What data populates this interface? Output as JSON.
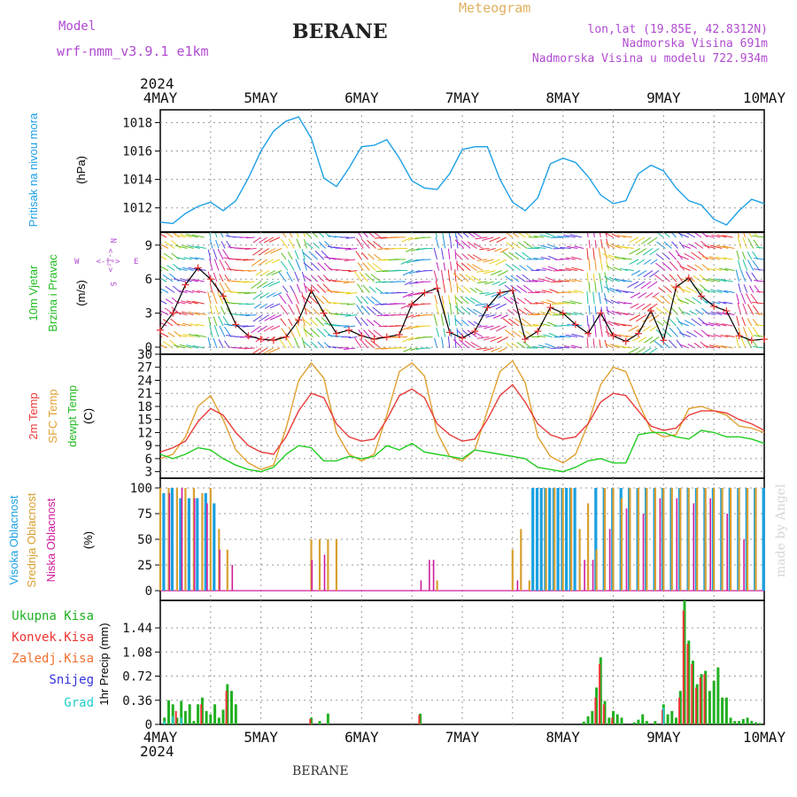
{
  "header": {
    "model_label": "Model",
    "model_name": "wrf-nmm_v3.9.1 e1km",
    "station": "BERANE",
    "product": "Meteogram",
    "coords": "lon,lat (19.85E, 42.8312N)",
    "elevation": "Nadmorska Visina 691m",
    "model_elevation": "Nadmorska Visina u modelu 722.934m",
    "year": "2024",
    "footer_station": "BERANE",
    "credit": "made by Angel"
  },
  "colors": {
    "pressure": "#1ea0e6",
    "t2m": "#e83a3a",
    "sfc": "#e0a030",
    "dew": "#22cc22",
    "wind_title": "#22bb22",
    "cloud_high": "#1aa0e0",
    "cloud_mid": "#d8a030",
    "cloud_low": "#d01c9c",
    "precip_total": "#22b022",
    "precip_conv": "#ee3333",
    "precip_frozen": "#f07030",
    "precip_snow": "#3333dd",
    "precip_grad": "#22cccc",
    "purple_text": "#b04ad0",
    "gold_text": "#e0b060"
  },
  "axis": {
    "day_labels": [
      "4MAY",
      "5MAY",
      "6MAY",
      "7MAY",
      "8MAY",
      "9MAY",
      "10MAY"
    ]
  },
  "panels": {
    "pressure": {
      "ylabel": "Pritisak na nivou mora",
      "unit": "(hPa)"
    },
    "wind": {
      "ylabel1": "10m Vjetar",
      "ylabel2": "Brzina i Pravac",
      "unit": "(m/s)",
      "compass_n": "N",
      "compass_s": "S",
      "compass_w": "W",
      "compass_e": "E",
      "compass_arrow_v": "<-|->",
      "compass_arrow_h": "<-|->"
    },
    "temp": {
      "label1": "2m Temp",
      "label2": "SFC Temp",
      "label3": "dewpt Temp",
      "unit": "(C)"
    },
    "cloud": {
      "label1": "Visoka Oblacnost",
      "label2": "Srednja Oblacnost",
      "label3": "Niska Oblacnost",
      "unit": "(%)"
    },
    "precip": {
      "unit": "1hr Precip (mm)",
      "legend": [
        "Ukupna Kisa",
        "Konvek.Kisa",
        "Zaledj.Kisa",
        "Snijeg",
        "Grad"
      ]
    }
  },
  "chart_data": [
    {
      "type": "line",
      "title": "Pritisak na nivou mora",
      "ylabel": "(hPa)",
      "ylim": [
        1010.3,
        1018.9
      ],
      "yticks": [
        1012,
        1014,
        1016,
        1018
      ],
      "x_unit": "hours since 4MAY 00UTC",
      "series": [
        {
          "x": [
            0,
            3,
            6,
            9,
            12,
            15,
            18,
            21,
            24,
            27,
            30,
            33,
            36,
            39,
            42,
            45,
            48,
            51,
            54,
            57,
            60,
            63,
            66,
            69,
            72,
            75,
            78,
            81,
            84,
            87,
            90,
            93,
            96,
            99,
            102,
            105,
            108,
            111,
            114,
            117,
            120,
            123,
            126,
            129,
            132,
            135,
            138,
            141,
            144
          ],
          "values": [
            1011.0,
            1010.9,
            1011.6,
            1012.1,
            1012.4,
            1011.8,
            1012.5,
            1014.1,
            1016.0,
            1017.4,
            1018.1,
            1018.4,
            1016.9,
            1014.1,
            1013.5,
            1014.8,
            1016.3,
            1016.4,
            1016.8,
            1015.5,
            1013.9,
            1013.4,
            1013.3,
            1014.4,
            1016.1,
            1016.3,
            1016.3,
            1014.0,
            1012.4,
            1011.8,
            1012.7,
            1015.1,
            1015.5,
            1015.2,
            1014.2,
            1012.9,
            1012.3,
            1012.5,
            1014.4,
            1015.0,
            1014.6,
            1013.4,
            1012.5,
            1012.2,
            1011.2,
            1010.8,
            1011.8,
            1012.6,
            1012.3
          ]
        }
      ]
    },
    {
      "type": "line",
      "title": "10m Vjetar Brzina i Pravac",
      "ylabel": "(m/s)",
      "ylim": [
        0,
        10
      ],
      "yticks": [
        0,
        3,
        6,
        9
      ],
      "series": [
        {
          "name": "speed",
          "x": [
            0,
            3,
            6,
            9,
            12,
            15,
            18,
            21,
            24,
            27,
            30,
            33,
            36,
            39,
            42,
            45,
            48,
            51,
            54,
            57,
            60,
            63,
            66,
            69,
            72,
            75,
            78,
            81,
            84,
            87,
            90,
            93,
            96,
            99,
            102,
            105,
            108,
            111,
            114,
            117,
            120,
            123,
            126,
            129,
            132,
            135,
            138,
            141,
            144
          ],
          "values": [
            1.5,
            3.0,
            5.5,
            7.0,
            6.0,
            4.5,
            2.0,
            1.0,
            0.7,
            0.6,
            0.9,
            2.4,
            5.0,
            3.0,
            1.2,
            1.5,
            1.0,
            0.7,
            0.9,
            1.1,
            3.8,
            4.8,
            5.2,
            1.3,
            0.8,
            1.4,
            3.5,
            4.8,
            5.0,
            0.7,
            1.4,
            3.5,
            3.0,
            2.0,
            1.2,
            3.0,
            1.0,
            0.5,
            1.2,
            3.2,
            0.6,
            5.3,
            6.1,
            4.5,
            3.6,
            3.2,
            1.0,
            0.6,
            0.7
          ]
        }
      ]
    },
    {
      "type": "line",
      "title": "2m Temp / SFC Temp / dewpt Temp",
      "ylabel": "(C)",
      "ylim": [
        1.5,
        30
      ],
      "yticks": [
        3,
        6,
        9,
        12,
        15,
        18,
        21,
        24,
        27,
        30
      ],
      "series": [
        {
          "name": "2m Temp",
          "x": [
            0,
            3,
            6,
            9,
            12,
            15,
            18,
            21,
            24,
            27,
            30,
            33,
            36,
            39,
            42,
            45,
            48,
            51,
            54,
            57,
            60,
            63,
            66,
            69,
            72,
            75,
            78,
            81,
            84,
            87,
            90,
            93,
            96,
            99,
            102,
            105,
            108,
            111,
            114,
            117,
            120,
            123,
            126,
            129,
            132,
            135,
            138,
            141,
            144
          ],
          "values": [
            7.5,
            8.5,
            10.0,
            14.5,
            17.5,
            16.0,
            12.0,
            9.0,
            7.5,
            7.0,
            11.0,
            17.0,
            21.0,
            20.0,
            14.0,
            11.0,
            10.0,
            10.5,
            15.0,
            20.5,
            22.0,
            20.0,
            14.0,
            11.5,
            10.0,
            10.5,
            15.0,
            20.5,
            23.0,
            19.0,
            14.0,
            11.5,
            10.5,
            11.0,
            14.0,
            19.0,
            21.0,
            20.5,
            17.0,
            13.5,
            12.5,
            13.0,
            16.0,
            17.0,
            17.0,
            16.5,
            15.0,
            14.0,
            12.5
          ]
        },
        {
          "name": "SFC Temp",
          "x": [
            0,
            3,
            6,
            9,
            12,
            15,
            18,
            21,
            24,
            27,
            30,
            33,
            36,
            39,
            42,
            45,
            48,
            51,
            54,
            57,
            60,
            63,
            66,
            69,
            72,
            75,
            78,
            81,
            84,
            87,
            90,
            93,
            96,
            99,
            102,
            105,
            108,
            111,
            114,
            117,
            120,
            123,
            126,
            129,
            132,
            135,
            138,
            141,
            144
          ],
          "values": [
            6.0,
            7.0,
            11.0,
            18.0,
            20.5,
            15.0,
            8.0,
            5.0,
            3.5,
            4.5,
            13.0,
            24.0,
            28.0,
            24.5,
            12.0,
            7.0,
            5.5,
            7.0,
            16.0,
            26.0,
            28.0,
            25.0,
            12.0,
            6.5,
            5.5,
            8.0,
            17.0,
            26.0,
            28.5,
            23.5,
            11.0,
            6.5,
            5.0,
            7.0,
            14.0,
            23.0,
            27.0,
            26.0,
            19.0,
            12.5,
            11.0,
            11.5,
            17.5,
            18.0,
            17.0,
            16.0,
            13.5,
            13.0,
            12.0
          ]
        },
        {
          "name": "dewpt Temp",
          "x": [
            0,
            3,
            6,
            9,
            12,
            15,
            18,
            21,
            24,
            27,
            30,
            33,
            36,
            39,
            42,
            45,
            48,
            51,
            54,
            57,
            60,
            63,
            66,
            69,
            72,
            75,
            78,
            81,
            84,
            87,
            90,
            93,
            96,
            99,
            102,
            105,
            108,
            111,
            114,
            117,
            120,
            123,
            126,
            129,
            132,
            135,
            138,
            141,
            144
          ],
          "values": [
            7.0,
            6.0,
            7.0,
            8.5,
            8.0,
            6.0,
            4.5,
            3.5,
            3.0,
            4.0,
            7.0,
            9.0,
            8.5,
            5.5,
            5.5,
            6.5,
            6.0,
            6.5,
            9.0,
            8.0,
            9.5,
            7.5,
            7.0,
            6.5,
            6.0,
            8.0,
            7.5,
            7.0,
            6.5,
            6.0,
            4.0,
            3.5,
            3.0,
            4.0,
            5.5,
            6.0,
            5.0,
            5.0,
            11.5,
            12.0,
            12.0,
            11.0,
            10.5,
            12.5,
            12.0,
            11.0,
            11.0,
            10.5,
            9.5
          ]
        }
      ]
    },
    {
      "type": "bar",
      "title": "Visoka / Srednja / Niska Oblacnost",
      "ylabel": "(%)",
      "ylim": [
        0,
        100
      ],
      "yticks": [
        0,
        25,
        50,
        75,
        100
      ],
      "series": [
        {
          "name": "Visoka Oblacnost",
          "x": [
            1,
            3,
            5,
            7,
            9,
            11,
            13,
            89,
            90,
            91,
            92,
            93,
            94,
            95,
            96,
            97,
            98,
            99,
            104,
            106,
            108,
            110,
            112,
            114,
            116,
            118,
            120,
            122,
            124,
            126,
            128,
            130,
            132,
            134,
            136,
            138,
            140,
            142,
            144
          ],
          "values": [
            95,
            100,
            90,
            90,
            90,
            95,
            85,
            100,
            100,
            100,
            100,
            100,
            100,
            100,
            100,
            100,
            100,
            100,
            100,
            100,
            100,
            100,
            100,
            100,
            100,
            100,
            100,
            100,
            100,
            100,
            100,
            100,
            100,
            100,
            100,
            100,
            100,
            100,
            100
          ]
        },
        {
          "name": "Srednja Oblacnost",
          "x": [
            0,
            2,
            4,
            6,
            8,
            10,
            12,
            14,
            16,
            36,
            38,
            40,
            42,
            66,
            84,
            86,
            88,
            92,
            94,
            96,
            98,
            100,
            102,
            104,
            106,
            108,
            110,
            112,
            114,
            116,
            118,
            120,
            122,
            124,
            126,
            128,
            130,
            132,
            134,
            136,
            138,
            140,
            142
          ],
          "values": [
            100,
            100,
            100,
            100,
            100,
            95,
            100,
            60,
            40,
            50,
            50,
            50,
            50,
            10,
            40,
            60,
            10,
            100,
            100,
            100,
            100,
            60,
            85,
            40,
            100,
            100,
            90,
            100,
            100,
            100,
            100,
            100,
            100,
            100,
            100,
            100,
            100,
            100,
            100,
            100,
            100,
            100,
            100
          ]
        },
        {
          "name": "Niska Oblacnost",
          "x": [
            2,
            5,
            8,
            11,
            14,
            17,
            36,
            39,
            62,
            64,
            65,
            85,
            101,
            103,
            107,
            111,
            115,
            119,
            123,
            127,
            131,
            135,
            139
          ],
          "values": [
            95,
            100,
            90,
            85,
            40,
            25,
            30,
            35,
            10,
            30,
            30,
            10,
            30,
            30,
            60,
            80,
            75,
            90,
            90,
            85,
            90,
            75,
            50
          ]
        }
      ]
    },
    {
      "type": "bar",
      "title": "1hr Precip",
      "ylabel": "1hr Precip (mm)",
      "ylim": [
        0,
        1.85
      ],
      "yticks": [
        0,
        0.36,
        0.72,
        1.08,
        1.44
      ],
      "series": [
        {
          "name": "Ukupna Kisa",
          "x": [
            1,
            2,
            3,
            4,
            5,
            6,
            7,
            8,
            9,
            10,
            11,
            12,
            13,
            14,
            15,
            16,
            17,
            18,
            36,
            38,
            40,
            62,
            101,
            102,
            103,
            104,
            105,
            106,
            107,
            108,
            109,
            110,
            113,
            114,
            115,
            116,
            118,
            120,
            121,
            122,
            123,
            124,
            125,
            126,
            127,
            128,
            129,
            130,
            131,
            132,
            133,
            134,
            135,
            136,
            137,
            138,
            139,
            140,
            141,
            142,
            143
          ],
          "values": [
            0.1,
            0.36,
            0.3,
            0.1,
            0.35,
            0.2,
            0.3,
            0.05,
            0.3,
            0.4,
            0.2,
            0.15,
            0.3,
            0.1,
            0.22,
            0.6,
            0.5,
            0.3,
            0.1,
            0.05,
            0.16,
            0.16,
            0.04,
            0.12,
            0.2,
            0.55,
            1.0,
            0.35,
            0.1,
            0.2,
            0.15,
            0.1,
            0.03,
            0.07,
            0.15,
            0.05,
            0.05,
            0.3,
            0.15,
            0.2,
            0.1,
            0.5,
            1.85,
            1.25,
            0.95,
            0.6,
            0.75,
            0.8,
            0.5,
            0.65,
            0.85,
            0.4,
            0.4,
            0.1,
            0.05,
            0.05,
            0.08,
            0.1,
            0.05,
            0.03,
            0.02
          ]
        },
        {
          "name": "Konvek.Kisa",
          "x": [
            4,
            10,
            16,
            36,
            62,
            104,
            105,
            106,
            108,
            120,
            124,
            125,
            126,
            127,
            128,
            129,
            130
          ],
          "values": [
            0.2,
            0.3,
            0.5,
            0.08,
            0.14,
            0.4,
            0.9,
            0.3,
            0.1,
            0.22,
            0.4,
            1.7,
            1.2,
            0.9,
            0.55,
            0.7,
            0.75
          ]
        },
        {
          "name": "Grad",
          "x": [
            1,
            3,
            5,
            120
          ],
          "values": [
            0.05,
            0.12,
            0.1,
            0.25
          ]
        }
      ]
    }
  ]
}
